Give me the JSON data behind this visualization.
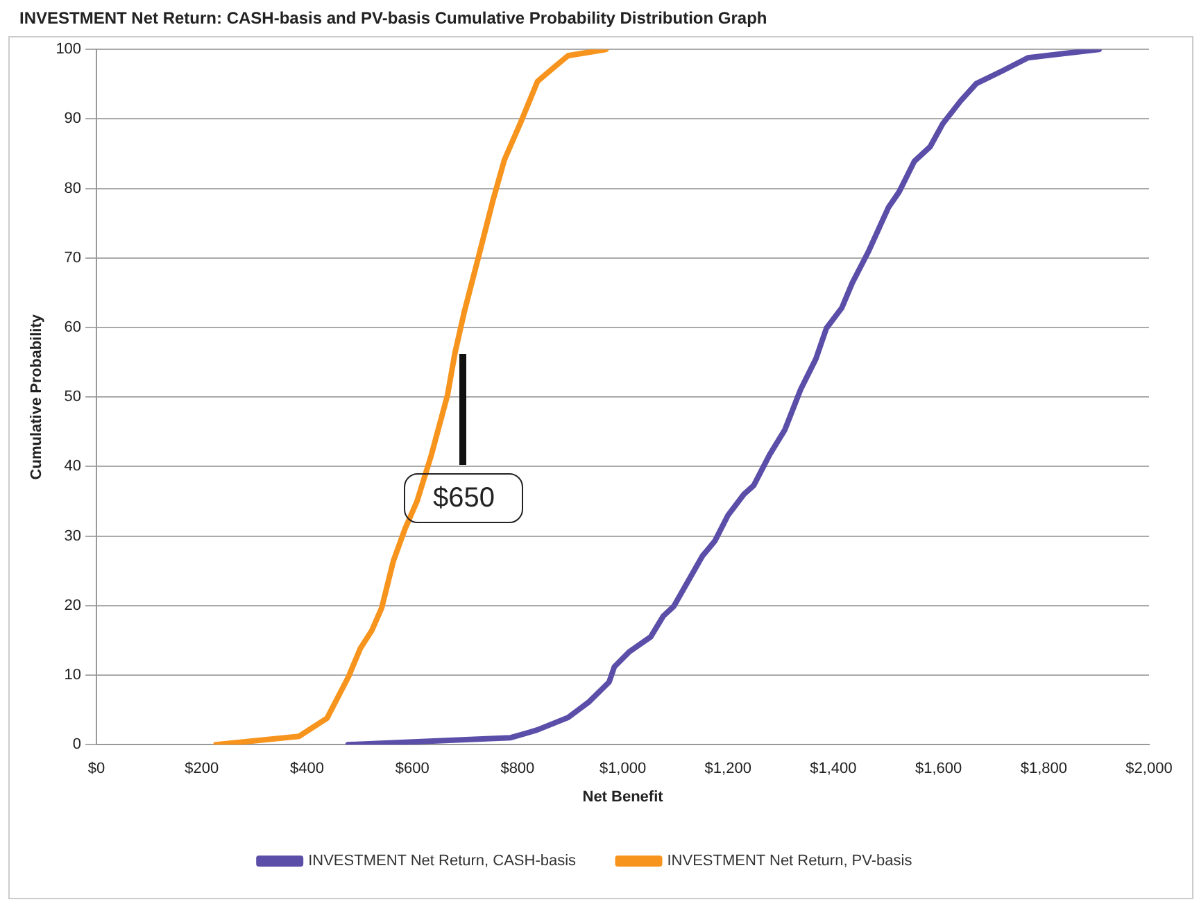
{
  "chart_data": {
    "type": "line",
    "title": "INVESTMENT Net Return: CASH-basis and PV-basis Cumulative Probability Distribution Graph",
    "xlabel": "Net Benefit",
    "ylabel": "Cumulative Probability",
    "xlim": [
      0,
      2000
    ],
    "xticks": [
      {
        "value": 0,
        "label": "$0"
      },
      {
        "value": 200,
        "label": "$200"
      },
      {
        "value": 400,
        "label": "$400"
      },
      {
        "value": 600,
        "label": "$600"
      },
      {
        "value": 800,
        "label": "$800"
      },
      {
        "value": 1000,
        "label": "$1,000"
      },
      {
        "value": 1200,
        "label": "$1,200"
      },
      {
        "value": 1400,
        "label": "$1,400"
      },
      {
        "value": 1600,
        "label": "$1,600"
      },
      {
        "value": 1800,
        "label": "$1,800"
      },
      {
        "value": 2000,
        "label": "$2,000"
      }
    ],
    "ylim": [
      0,
      100
    ],
    "yticks": [
      0,
      10,
      20,
      30,
      40,
      50,
      60,
      70,
      80,
      90,
      100
    ],
    "grid": "y",
    "legend": "bottom",
    "marker": "none",
    "line_style": "solid",
    "series": [
      {
        "name": "INVESTMENT Net Return, CASH-basis",
        "color": "#5b4ea8",
        "x": [
          478,
          787,
          837,
          896,
          935,
          974,
          984,
          1013,
          1053,
          1077,
          1097,
          1151,
          1175,
          1200,
          1230,
          1249,
          1279,
          1308,
          1338,
          1367,
          1387,
          1416,
          1436,
          1466,
          1505,
          1525,
          1554,
          1584,
          1608,
          1642,
          1672,
          1721,
          1770,
          1905
        ],
        "values": [
          0,
          1,
          2.1,
          3.9,
          6.1,
          9,
          11.2,
          13.4,
          15.5,
          18.5,
          19.9,
          27.1,
          29.3,
          33,
          36,
          37.3,
          41.7,
          45.3,
          51.1,
          55.5,
          59.9,
          62.8,
          66.4,
          70.8,
          77.3,
          79.5,
          83.9,
          86,
          89.3,
          92.6,
          95.1,
          96.9,
          98.8,
          100
        ]
      },
      {
        "name": "INVESTMENT Net Return, PV-basis",
        "color": "#f7941d",
        "x": [
          227,
          385,
          438,
          479,
          501,
          523,
          542,
          564,
          586,
          609,
          636,
          667,
          681,
          699,
          726,
          753,
          775,
          806,
          838,
          869,
          896,
          968
        ],
        "values": [
          0,
          1.2,
          3.8,
          9.8,
          13.8,
          16.4,
          19.7,
          26.4,
          31,
          35,
          41.6,
          50.3,
          56.3,
          62.3,
          70.2,
          78.2,
          84.1,
          89.5,
          95.4,
          97.4,
          99.1,
          100
        ]
      }
    ],
    "annotations": [
      {
        "text": "$650",
        "x": 681,
        "y": 56.3
      }
    ]
  }
}
